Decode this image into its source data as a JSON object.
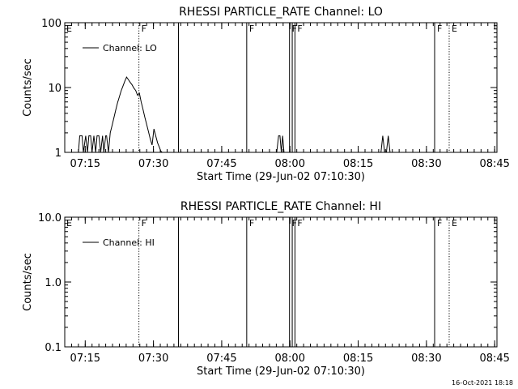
{
  "footer_stamp": "16-Oct-2021 18:18",
  "chart_data": [
    {
      "type": "line",
      "title": "RHESSI PARTICLE_RATE Channel: LO",
      "xlabel": "Start Time (29-Jun-02 07:10:30)",
      "ylabel": "Counts/sec",
      "y_scale": "log",
      "ylim": [
        1,
        100
      ],
      "yticks": [
        1,
        10,
        100
      ],
      "ytick_labels": [
        "1",
        "10",
        "100"
      ],
      "xlim_minutes": [
        0,
        95
      ],
      "xticks_minutes": [
        4.5,
        19.5,
        34.5,
        49.5,
        64.5,
        79.5,
        94.5
      ],
      "xtick_labels": [
        "07:15",
        "07:30",
        "07:45",
        "08:00",
        "08:15",
        "08:30",
        "08:45"
      ],
      "legend": {
        "label": "Channel: LO",
        "location": "top-left"
      },
      "series": [
        {
          "name": "Channel: LO",
          "x_minutes": [
            3,
            3.3,
            3.8,
            4.1,
            4.6,
            5,
            5.3,
            5.7,
            6,
            6.4,
            6.8,
            7.1,
            7.5,
            7.9,
            8.3,
            8.6,
            9,
            9.2,
            9.6,
            10,
            10.4,
            10.8,
            11.2,
            11.6,
            12,
            12.4,
            12.8,
            13.2,
            13.6,
            14,
            14.4,
            14.8,
            15.2,
            15.6,
            16,
            16.4,
            16.8,
            17.2,
            17.6,
            18,
            18.4,
            18.8,
            19.2,
            19.6,
            20,
            20.4,
            20.8,
            21.1,
            21.4,
            46.6,
            47,
            47.3,
            47.6,
            47.9,
            48.2,
            69.5,
            69.9,
            70.3,
            70.7,
            71.1,
            71.5,
            71.9
          ],
          "y": [
            1,
            1.8,
            1.8,
            1,
            1.8,
            1,
            1.8,
            1.8,
            1,
            1.8,
            1,
            1.8,
            1.8,
            1,
            1.8,
            1,
            1.8,
            1.8,
            1,
            2,
            2.6,
            3.4,
            4.5,
            5.8,
            7.2,
            8.9,
            10.5,
            12.5,
            14.5,
            13.2,
            12,
            11,
            9.8,
            9,
            7.6,
            8.2,
            6,
            4.6,
            3.5,
            2.7,
            2.1,
            1.6,
            1.3,
            2.3,
            1.8,
            1.4,
            1.2,
            1.05,
            1,
            1,
            1.8,
            1.8,
            1,
            1.8,
            1,
            1,
            1.8,
            1,
            1,
            1.8,
            1,
            1
          ]
        }
      ],
      "event_lines": [
        {
          "x_minutes": 16.3,
          "style": "dotted",
          "label": "F"
        },
        {
          "x_minutes": 25,
          "style": "solid",
          "label": ""
        },
        {
          "x_minutes": 40,
          "style": "solid",
          "label": "F"
        },
        {
          "x_minutes": 49.4,
          "style": "solid",
          "label": "F"
        },
        {
          "x_minutes": 50,
          "style": "solid",
          "label": ""
        },
        {
          "x_minutes": 50.6,
          "style": "solid",
          "label": "F"
        },
        {
          "x_minutes": 81.3,
          "style": "solid",
          "label": "F"
        },
        {
          "x_minutes": 84.5,
          "style": "dotted",
          "label": "E"
        },
        {
          "x_minutes": 95.2,
          "style": "dotted",
          "label": ""
        }
      ],
      "corner_label": "E"
    },
    {
      "type": "line",
      "title": "RHESSI PARTICLE_RATE Channel: HI",
      "xlabel": "Start Time (29-Jun-02 07:10:30)",
      "ylabel": "Counts/sec",
      "y_scale": "log",
      "ylim": [
        0.1,
        10
      ],
      "yticks": [
        0.1,
        1,
        10
      ],
      "ytick_labels": [
        "0.1",
        "1.0",
        "10.0"
      ],
      "xlim_minutes": [
        0,
        95
      ],
      "xticks_minutes": [
        4.5,
        19.5,
        34.5,
        49.5,
        64.5,
        79.5,
        94.5
      ],
      "xtick_labels": [
        "07:15",
        "07:30",
        "07:45",
        "08:00",
        "08:15",
        "08:30",
        "08:45"
      ],
      "legend": {
        "label": "Channel: HI",
        "location": "top-left"
      },
      "series": [
        {
          "name": "Channel: HI",
          "x_minutes": [],
          "y": []
        }
      ],
      "event_lines": [
        {
          "x_minutes": 16.3,
          "style": "dotted",
          "label": "F"
        },
        {
          "x_minutes": 25,
          "style": "solid",
          "label": ""
        },
        {
          "x_minutes": 40,
          "style": "solid",
          "label": "F"
        },
        {
          "x_minutes": 49.4,
          "style": "solid",
          "label": "F"
        },
        {
          "x_minutes": 50,
          "style": "solid",
          "label": ""
        },
        {
          "x_minutes": 50.6,
          "style": "solid",
          "label": "F"
        },
        {
          "x_minutes": 81.3,
          "style": "solid",
          "label": "F"
        },
        {
          "x_minutes": 84.5,
          "style": "dotted",
          "label": "E"
        },
        {
          "x_minutes": 95.2,
          "style": "dotted",
          "label": ""
        }
      ],
      "corner_label": "E"
    }
  ]
}
